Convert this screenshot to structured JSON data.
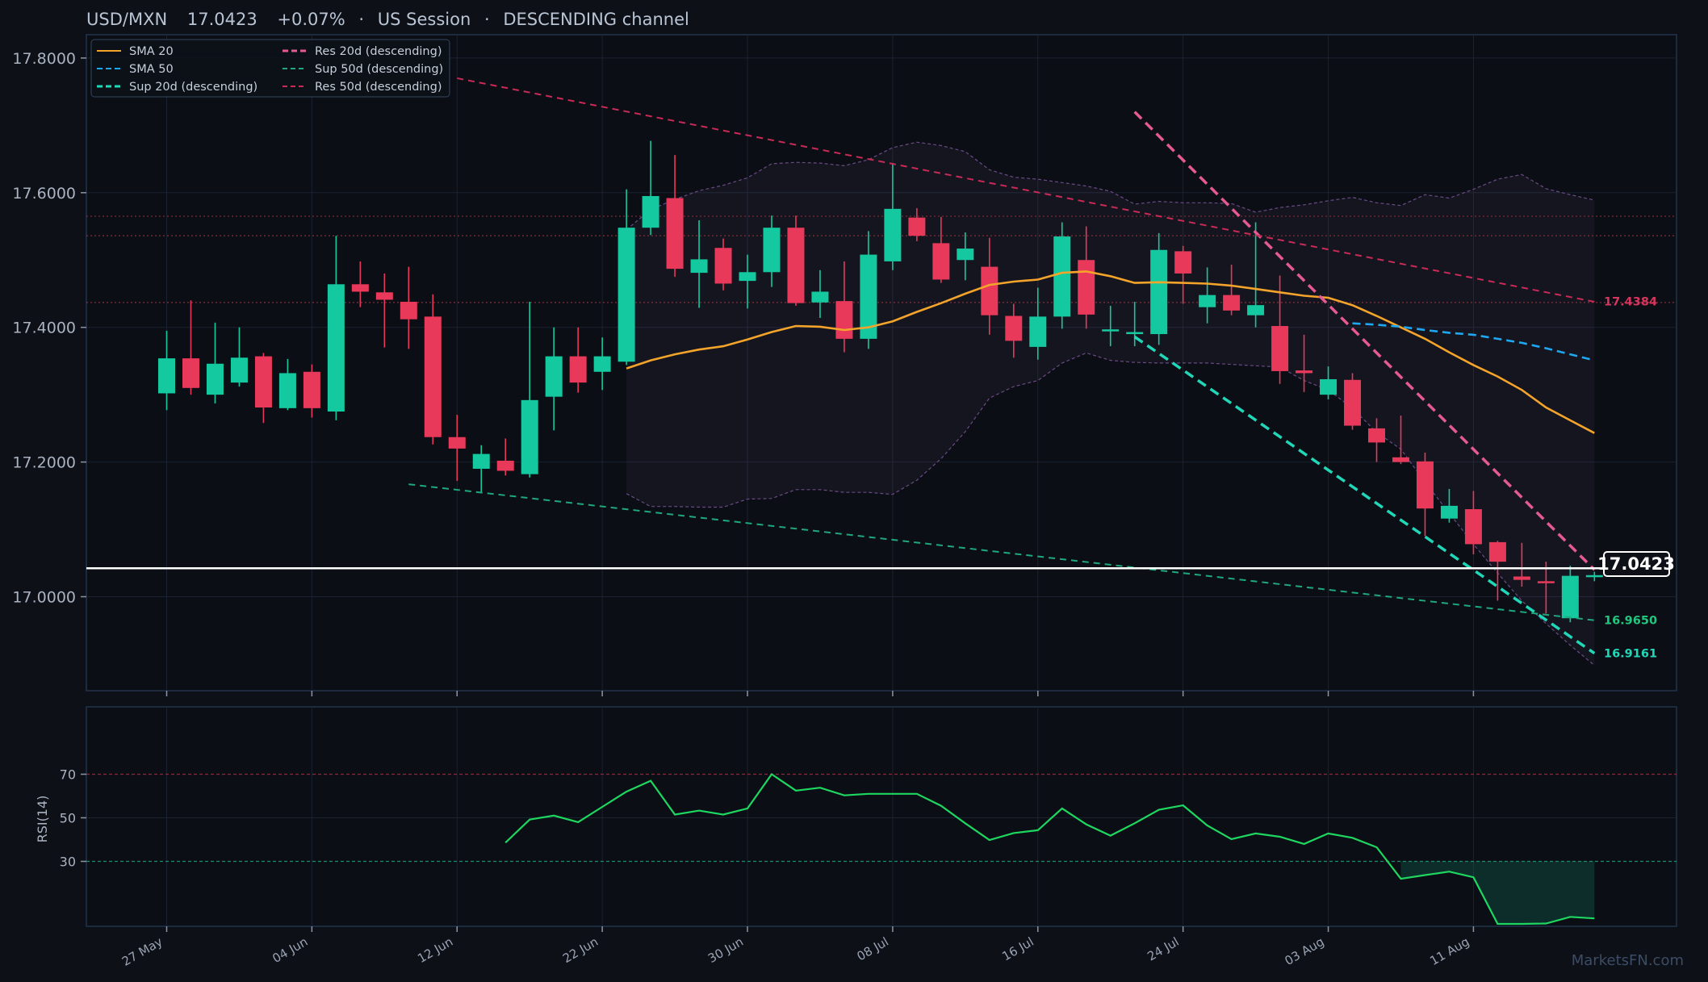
{
  "header": {
    "pair": "USD/MXN",
    "price": "17.0423",
    "change": "+0.07%",
    "session": "US Session",
    "pattern": "DESCENDING channel"
  },
  "watermark": "MarketsFN.com",
  "colors": {
    "background": "#0d1017",
    "up": "#14c9a0",
    "down": "#e8395a",
    "sma20": "#f4a42b",
    "sma50": "#1ea7f2",
    "res20": "#e55b91",
    "sup20": "#20d8b8",
    "sup50": "#1ea87c",
    "res50": "#c92a56",
    "rsi": "#1ed760",
    "price_line": "#ffffff"
  },
  "chart_data": [
    {
      "type": "candlestick",
      "title": "USD/MXN 17.0423 +0.07% · US Session · DESCENDING channel",
      "ylim": [
        16.895,
        17.818
      ],
      "yticks": [
        "17.0000",
        "17.2000",
        "17.4000",
        "17.6000",
        "17.8000"
      ],
      "xticks": [
        "27 May",
        "04 Jun",
        "12 Jun",
        "22 Jun",
        "30 Jun",
        "08 Jul",
        "16 Jul",
        "24 Jul",
        "03 Aug",
        "11 Aug"
      ],
      "xtick_index": [
        0,
        6,
        12,
        18,
        24,
        30,
        36,
        42,
        48,
        54
      ],
      "candles": [
        {
          "o": 17.302,
          "h": 17.395,
          "l": 17.277,
          "c": 17.354
        },
        {
          "o": 17.354,
          "h": 17.44,
          "l": 17.3,
          "c": 17.31
        },
        {
          "o": 17.3,
          "h": 17.407,
          "l": 17.287,
          "c": 17.346
        },
        {
          "o": 17.318,
          "h": 17.4,
          "l": 17.312,
          "c": 17.355
        },
        {
          "o": 17.357,
          "h": 17.362,
          "l": 17.258,
          "c": 17.281
        },
        {
          "o": 17.28,
          "h": 17.353,
          "l": 17.277,
          "c": 17.332
        },
        {
          "o": 17.334,
          "h": 17.345,
          "l": 17.266,
          "c": 17.28
        },
        {
          "o": 17.275,
          "h": 17.536,
          "l": 17.262,
          "c": 17.464
        },
        {
          "o": 17.464,
          "h": 17.498,
          "l": 17.43,
          "c": 17.453
        },
        {
          "o": 17.452,
          "h": 17.48,
          "l": 17.37,
          "c": 17.441
        },
        {
          "o": 17.438,
          "h": 17.49,
          "l": 17.368,
          "c": 17.412
        },
        {
          "o": 17.416,
          "h": 17.449,
          "l": 17.226,
          "c": 17.237
        },
        {
          "o": 17.237,
          "h": 17.27,
          "l": 17.172,
          "c": 17.22
        },
        {
          "o": 17.19,
          "h": 17.225,
          "l": 17.155,
          "c": 17.212
        },
        {
          "o": 17.202,
          "h": 17.235,
          "l": 17.18,
          "c": 17.187
        },
        {
          "o": 17.182,
          "h": 17.438,
          "l": 17.177,
          "c": 17.292
        },
        {
          "o": 17.297,
          "h": 17.4,
          "l": 17.247,
          "c": 17.357
        },
        {
          "o": 17.357,
          "h": 17.4,
          "l": 17.303,
          "c": 17.318
        },
        {
          "o": 17.334,
          "h": 17.385,
          "l": 17.307,
          "c": 17.357
        },
        {
          "o": 17.349,
          "h": 17.605,
          "l": 17.344,
          "c": 17.548
        },
        {
          "o": 17.548,
          "h": 17.677,
          "l": 17.537,
          "c": 17.595
        },
        {
          "o": 17.592,
          "h": 17.656,
          "l": 17.475,
          "c": 17.487
        },
        {
          "o": 17.481,
          "h": 17.559,
          "l": 17.429,
          "c": 17.501
        },
        {
          "o": 17.518,
          "h": 17.532,
          "l": 17.455,
          "c": 17.465
        },
        {
          "o": 17.469,
          "h": 17.508,
          "l": 17.428,
          "c": 17.482
        },
        {
          "o": 17.482,
          "h": 17.566,
          "l": 17.46,
          "c": 17.548
        },
        {
          "o": 17.548,
          "h": 17.566,
          "l": 17.432,
          "c": 17.436
        },
        {
          "o": 17.437,
          "h": 17.485,
          "l": 17.414,
          "c": 17.453
        },
        {
          "o": 17.439,
          "h": 17.498,
          "l": 17.363,
          "c": 17.383
        },
        {
          "o": 17.383,
          "h": 17.543,
          "l": 17.368,
          "c": 17.508
        },
        {
          "o": 17.498,
          "h": 17.644,
          "l": 17.485,
          "c": 17.576
        },
        {
          "o": 17.563,
          "h": 17.577,
          "l": 17.528,
          "c": 17.536
        },
        {
          "o": 17.525,
          "h": 17.564,
          "l": 17.466,
          "c": 17.471
        },
        {
          "o": 17.5,
          "h": 17.541,
          "l": 17.47,
          "c": 17.517
        },
        {
          "o": 17.49,
          "h": 17.533,
          "l": 17.389,
          "c": 17.418
        },
        {
          "o": 17.417,
          "h": 17.435,
          "l": 17.355,
          "c": 17.38
        },
        {
          "o": 17.371,
          "h": 17.459,
          "l": 17.352,
          "c": 17.416
        },
        {
          "o": 17.416,
          "h": 17.556,
          "l": 17.398,
          "c": 17.535
        },
        {
          "o": 17.5,
          "h": 17.55,
          "l": 17.398,
          "c": 17.419
        },
        {
          "o": 17.396,
          "h": 17.432,
          "l": 17.372,
          "c": 17.397
        },
        {
          "o": 17.392,
          "h": 17.438,
          "l": 17.372,
          "c": 17.393
        },
        {
          "o": 17.39,
          "h": 17.54,
          "l": 17.374,
          "c": 17.515
        },
        {
          "o": 17.513,
          "h": 17.521,
          "l": 17.435,
          "c": 17.48
        },
        {
          "o": 17.43,
          "h": 17.489,
          "l": 17.406,
          "c": 17.448
        },
        {
          "o": 17.448,
          "h": 17.493,
          "l": 17.418,
          "c": 17.425
        },
        {
          "o": 17.418,
          "h": 17.556,
          "l": 17.4,
          "c": 17.433
        },
        {
          "o": 17.402,
          "h": 17.477,
          "l": 17.316,
          "c": 17.335
        },
        {
          "o": 17.336,
          "h": 17.389,
          "l": 17.304,
          "c": 17.332
        },
        {
          "o": 17.3,
          "h": 17.342,
          "l": 17.293,
          "c": 17.323
        },
        {
          "o": 17.322,
          "h": 17.332,
          "l": 17.248,
          "c": 17.254
        },
        {
          "o": 17.25,
          "h": 17.265,
          "l": 17.2,
          "c": 17.229
        },
        {
          "o": 17.207,
          "h": 17.269,
          "l": 17.197,
          "c": 17.2
        },
        {
          "o": 17.201,
          "h": 17.214,
          "l": 17.09,
          "c": 17.131
        },
        {
          "o": 17.116,
          "h": 17.16,
          "l": 17.11,
          "c": 17.135
        },
        {
          "o": 17.13,
          "h": 17.157,
          "l": 17.063,
          "c": 17.078
        },
        {
          "o": 17.081,
          "h": 17.083,
          "l": 16.994,
          "c": 17.052
        },
        {
          "o": 17.03,
          "h": 17.08,
          "l": 17.015,
          "c": 17.025
        },
        {
          "o": 17.023,
          "h": 17.052,
          "l": 16.975,
          "c": 17.02
        },
        {
          "o": 16.968,
          "h": 17.046,
          "l": 16.962,
          "c": 17.031
        },
        {
          "o": 17.03,
          "h": 17.037,
          "l": 17.023,
          "c": 17.032
        }
      ],
      "sma20": [
        [
          19,
          17.339
        ],
        [
          20,
          17.351
        ],
        [
          21,
          17.36
        ],
        [
          22,
          17.367
        ],
        [
          23,
          17.372
        ],
        [
          24,
          17.382
        ],
        [
          25,
          17.393
        ],
        [
          26,
          17.402
        ],
        [
          27,
          17.401
        ],
        [
          28,
          17.396
        ],
        [
          29,
          17.4
        ],
        [
          30,
          17.409
        ],
        [
          31,
          17.423
        ],
        [
          32,
          17.436
        ],
        [
          33,
          17.45
        ],
        [
          34,
          17.463
        ],
        [
          35,
          17.468
        ],
        [
          36,
          17.471
        ],
        [
          37,
          17.481
        ],
        [
          38,
          17.483
        ],
        [
          39,
          17.476
        ],
        [
          40,
          17.466
        ],
        [
          41,
          17.467
        ],
        [
          42,
          17.466
        ],
        [
          43,
          17.465
        ],
        [
          44,
          17.462
        ],
        [
          45,
          17.457
        ],
        [
          46,
          17.452
        ],
        [
          47,
          17.447
        ],
        [
          48,
          17.444
        ],
        [
          49,
          17.433
        ],
        [
          50,
          17.417
        ],
        [
          51,
          17.4
        ],
        [
          52,
          17.383
        ],
        [
          53,
          17.363
        ],
        [
          54,
          17.344
        ],
        [
          55,
          17.327
        ],
        [
          56,
          17.307
        ],
        [
          57,
          17.281
        ],
        [
          58,
          17.262
        ],
        [
          59,
          17.243
        ]
      ],
      "sma50": [
        [
          49,
          17.406
        ],
        [
          50,
          17.404
        ],
        [
          51,
          17.401
        ],
        [
          52,
          17.396
        ],
        [
          53,
          17.392
        ],
        [
          54,
          17.389
        ],
        [
          55,
          17.383
        ],
        [
          56,
          17.377
        ],
        [
          57,
          17.369
        ],
        [
          58,
          17.36
        ],
        [
          59,
          17.351
        ]
      ],
      "bollinger_upper": [
        [
          19,
          17.545
        ],
        [
          20,
          17.575
        ],
        [
          21,
          17.59
        ],
        [
          22,
          17.603
        ],
        [
          23,
          17.611
        ],
        [
          24,
          17.622
        ],
        [
          25,
          17.643
        ],
        [
          26,
          17.645
        ],
        [
          27,
          17.644
        ],
        [
          28,
          17.64
        ],
        [
          29,
          17.649
        ],
        [
          30,
          17.667
        ],
        [
          31,
          17.675
        ],
        [
          32,
          17.67
        ],
        [
          33,
          17.661
        ],
        [
          34,
          17.634
        ],
        [
          35,
          17.623
        ],
        [
          36,
          17.62
        ],
        [
          37,
          17.615
        ],
        [
          38,
          17.61
        ],
        [
          39,
          17.602
        ],
        [
          40,
          17.583
        ],
        [
          41,
          17.587
        ],
        [
          42,
          17.585
        ],
        [
          43,
          17.585
        ],
        [
          44,
          17.584
        ],
        [
          45,
          17.571
        ],
        [
          46,
          17.578
        ],
        [
          47,
          17.582
        ],
        [
          48,
          17.588
        ],
        [
          49,
          17.593
        ],
        [
          50,
          17.585
        ],
        [
          51,
          17.581
        ],
        [
          52,
          17.597
        ],
        [
          53,
          17.592
        ],
        [
          54,
          17.605
        ],
        [
          55,
          17.62
        ],
        [
          56,
          17.627
        ],
        [
          57,
          17.606
        ],
        [
          58,
          17.597
        ],
        [
          59,
          17.589
        ]
      ],
      "bollinger_lower": [
        [
          19,
          17.153
        ],
        [
          20,
          17.134
        ],
        [
          21,
          17.134
        ],
        [
          22,
          17.133
        ],
        [
          23,
          17.133
        ],
        [
          24,
          17.145
        ],
        [
          25,
          17.146
        ],
        [
          26,
          17.159
        ],
        [
          27,
          17.159
        ],
        [
          28,
          17.155
        ],
        [
          29,
          17.155
        ],
        [
          30,
          17.152
        ],
        [
          31,
          17.173
        ],
        [
          32,
          17.205
        ],
        [
          33,
          17.245
        ],
        [
          34,
          17.295
        ],
        [
          35,
          17.312
        ],
        [
          36,
          17.321
        ],
        [
          37,
          17.347
        ],
        [
          38,
          17.362
        ],
        [
          39,
          17.351
        ],
        [
          40,
          17.348
        ],
        [
          41,
          17.347
        ],
        [
          42,
          17.347
        ],
        [
          43,
          17.347
        ],
        [
          44,
          17.345
        ],
        [
          45,
          17.343
        ],
        [
          46,
          17.341
        ],
        [
          47,
          17.321
        ],
        [
          48,
          17.307
        ],
        [
          49,
          17.28
        ],
        [
          50,
          17.244
        ],
        [
          51,
          17.219
        ],
        [
          52,
          17.17
        ],
        [
          53,
          17.124
        ],
        [
          54,
          17.078
        ],
        [
          55,
          17.035
        ],
        [
          56,
          16.994
        ],
        [
          57,
          16.96
        ],
        [
          58,
          16.928
        ],
        [
          59,
          16.898
        ]
      ],
      "trendlines": [
        {
          "name": "Res 20d (descending)",
          "x0": 40,
          "y0": 17.72,
          "x1": 59,
          "y1": 17.04,
          "width": 3.5,
          "dash": "12 7"
        },
        {
          "name": "Sup 20d (descending)",
          "x0": 40,
          "y0": 17.386,
          "x1": 59,
          "y1": 16.916,
          "width": 3.5,
          "dash": "12 7"
        },
        {
          "name": "Sup 50d (descending)",
          "x0": 10,
          "y0": 17.167,
          "x1": 59,
          "y1": 16.965,
          "width": 2,
          "dash": "8 6"
        },
        {
          "name": "Res 50d (descending)",
          "x0": 12,
          "y0": 17.77,
          "x1": 59,
          "y1": 17.438,
          "width": 2,
          "dash": "8 6"
        }
      ],
      "hlines": [
        17.565,
        17.536,
        17.437
      ],
      "current_price": 17.0423,
      "end_labels": [
        {
          "text": "17.4384",
          "value": 17.4384,
          "color": "#d8355e"
        },
        {
          "text": "16.9650",
          "value": 16.965,
          "color": "#22c77f"
        },
        {
          "text": "16.9161",
          "value": 16.9161,
          "color": "#20d8b8"
        }
      ],
      "legend": [
        {
          "name": "SMA 20",
          "color": "#f4a42b",
          "dash": "none",
          "width": 2
        },
        {
          "name": "Res 20d (descending)",
          "color": "#e55b91",
          "dash": "7 4",
          "width": 3
        },
        {
          "name": "SMA 50",
          "color": "#1ea7f2",
          "dash": "7 4",
          "width": 2
        },
        {
          "name": "Sup 50d (descending)",
          "color": "#1ea87c",
          "dash": "6 4",
          "width": 2
        },
        {
          "name": "Sup 20d (descending)",
          "color": "#20d8b8",
          "dash": "7 4",
          "width": 3
        },
        {
          "name": "Res 50d (descending)",
          "color": "#c92a56",
          "dash": "6 4",
          "width": 2
        }
      ],
      "legend_position": "top-left"
    },
    {
      "type": "line",
      "ylabel": "RSI(14)",
      "ylim": [
        0,
        100
      ],
      "yticks": [
        "30",
        "50",
        "70"
      ],
      "overbought": 70,
      "oversold": 30,
      "rsi": [
        [
          14,
          38.6
        ],
        [
          15,
          49.2
        ],
        [
          16,
          51.0
        ],
        [
          17,
          48.0
        ],
        [
          18,
          55.0
        ],
        [
          19,
          62.0
        ],
        [
          20,
          67.0
        ],
        [
          21,
          51.5
        ],
        [
          22,
          53.3
        ],
        [
          23,
          51.5
        ],
        [
          24,
          54.3
        ],
        [
          25,
          70.0
        ],
        [
          26,
          62.5
        ],
        [
          27,
          63.8
        ],
        [
          28,
          60.3
        ],
        [
          29,
          61.0
        ],
        [
          30,
          61.0
        ],
        [
          31,
          61.0
        ],
        [
          32,
          55.5
        ],
        [
          33,
          47.5
        ],
        [
          34,
          39.8
        ],
        [
          35,
          43.0
        ],
        [
          36,
          44.3
        ],
        [
          37,
          54.3
        ],
        [
          38,
          47.0
        ],
        [
          39,
          41.8
        ],
        [
          40,
          47.5
        ],
        [
          41,
          53.7
        ],
        [
          42,
          55.7
        ],
        [
          43,
          46.5
        ],
        [
          44,
          40.2
        ],
        [
          45,
          42.8
        ],
        [
          46,
          41.3
        ],
        [
          47,
          38.0
        ],
        [
          48,
          42.8
        ],
        [
          49,
          40.8
        ],
        [
          50,
          36.5
        ],
        [
          51,
          22.0
        ],
        [
          52,
          23.7
        ],
        [
          53,
          25.3
        ],
        [
          54,
          22.7
        ],
        [
          55,
          1.3
        ],
        [
          56,
          1.3
        ],
        [
          57,
          1.5
        ],
        [
          58,
          4.5
        ],
        [
          59,
          3.8
        ]
      ]
    }
  ]
}
